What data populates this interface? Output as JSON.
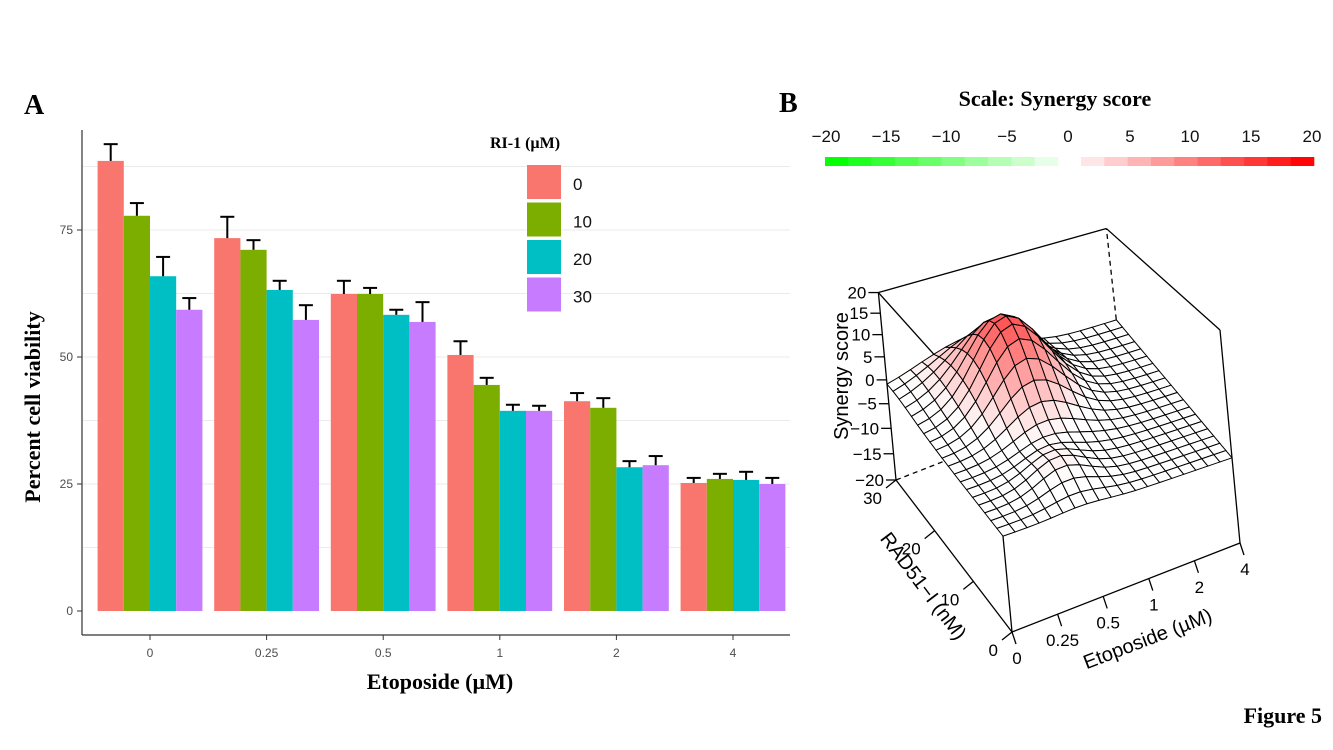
{
  "figure_label": "Figure 5",
  "chart_data": [
    {
      "panel": "A",
      "type": "bar",
      "title": "",
      "xlabel": "Etoposide (µM)",
      "ylabel": "Percent cell viability",
      "categories": [
        "0",
        "0.25",
        "0.5",
        "1",
        "2",
        "4"
      ],
      "yticks": [
        0,
        25,
        50,
        75
      ],
      "ylim": [
        0,
        92
      ],
      "grid": true,
      "legend": {
        "title": "RI-1 (µM)",
        "placement": "top-right"
      },
      "series": [
        {
          "name": "0",
          "color": "#F8766D",
          "values": [
            88.6,
            73.4,
            62.4,
            50.4,
            41.3,
            25.2
          ],
          "error_upper": [
            91.9,
            77.6,
            65.0,
            53.1,
            42.9,
            26.2
          ]
        },
        {
          "name": "10",
          "color": "#7CAE00",
          "values": [
            77.8,
            71.1,
            62.4,
            44.5,
            40.0,
            26.0
          ],
          "error_upper": [
            80.3,
            73.0,
            63.6,
            45.9,
            41.9,
            27.0
          ]
        },
        {
          "name": "20",
          "color": "#00BFC4",
          "values": [
            65.9,
            63.2,
            58.3,
            39.4,
            28.3,
            25.8
          ],
          "error_upper": [
            69.7,
            65.0,
            59.3,
            40.6,
            29.5,
            27.4
          ]
        },
        {
          "name": "30",
          "color": "#C77CFF",
          "values": [
            59.3,
            57.3,
            56.9,
            39.4,
            28.7,
            25.0
          ],
          "error_upper": [
            61.6,
            60.2,
            60.8,
            40.4,
            30.5,
            26.2
          ]
        }
      ]
    },
    {
      "panel": "B",
      "type": "surface3d",
      "title": "Scale: Synergy score",
      "scale_ticks": [
        "−20",
        "−15",
        "−10",
        "−5",
        "0",
        "5",
        "10",
        "15",
        "20"
      ],
      "scale_range": [
        -20,
        20
      ],
      "scale_colors": {
        "negative": "#00E000",
        "positive": "#FF0000"
      },
      "zlabel": "Synergy score",
      "zticks": [
        "20",
        "15",
        "10",
        "5",
        "0",
        "−5",
        "−10",
        "−15",
        "−20"
      ],
      "zlim": [
        -20,
        20
      ],
      "xlabel": "Etoposide (µM)",
      "xticks": [
        "0",
        "0.25",
        "0.5",
        "1",
        "2",
        "4"
      ],
      "ylabel": "RAD51−I (nM)",
      "yticks": [
        "0",
        "10",
        "20",
        "30"
      ],
      "peak_synergy": 18,
      "peak_location": {
        "etoposide_uM": 0.5,
        "rad51i_nM": 22
      }
    }
  ]
}
